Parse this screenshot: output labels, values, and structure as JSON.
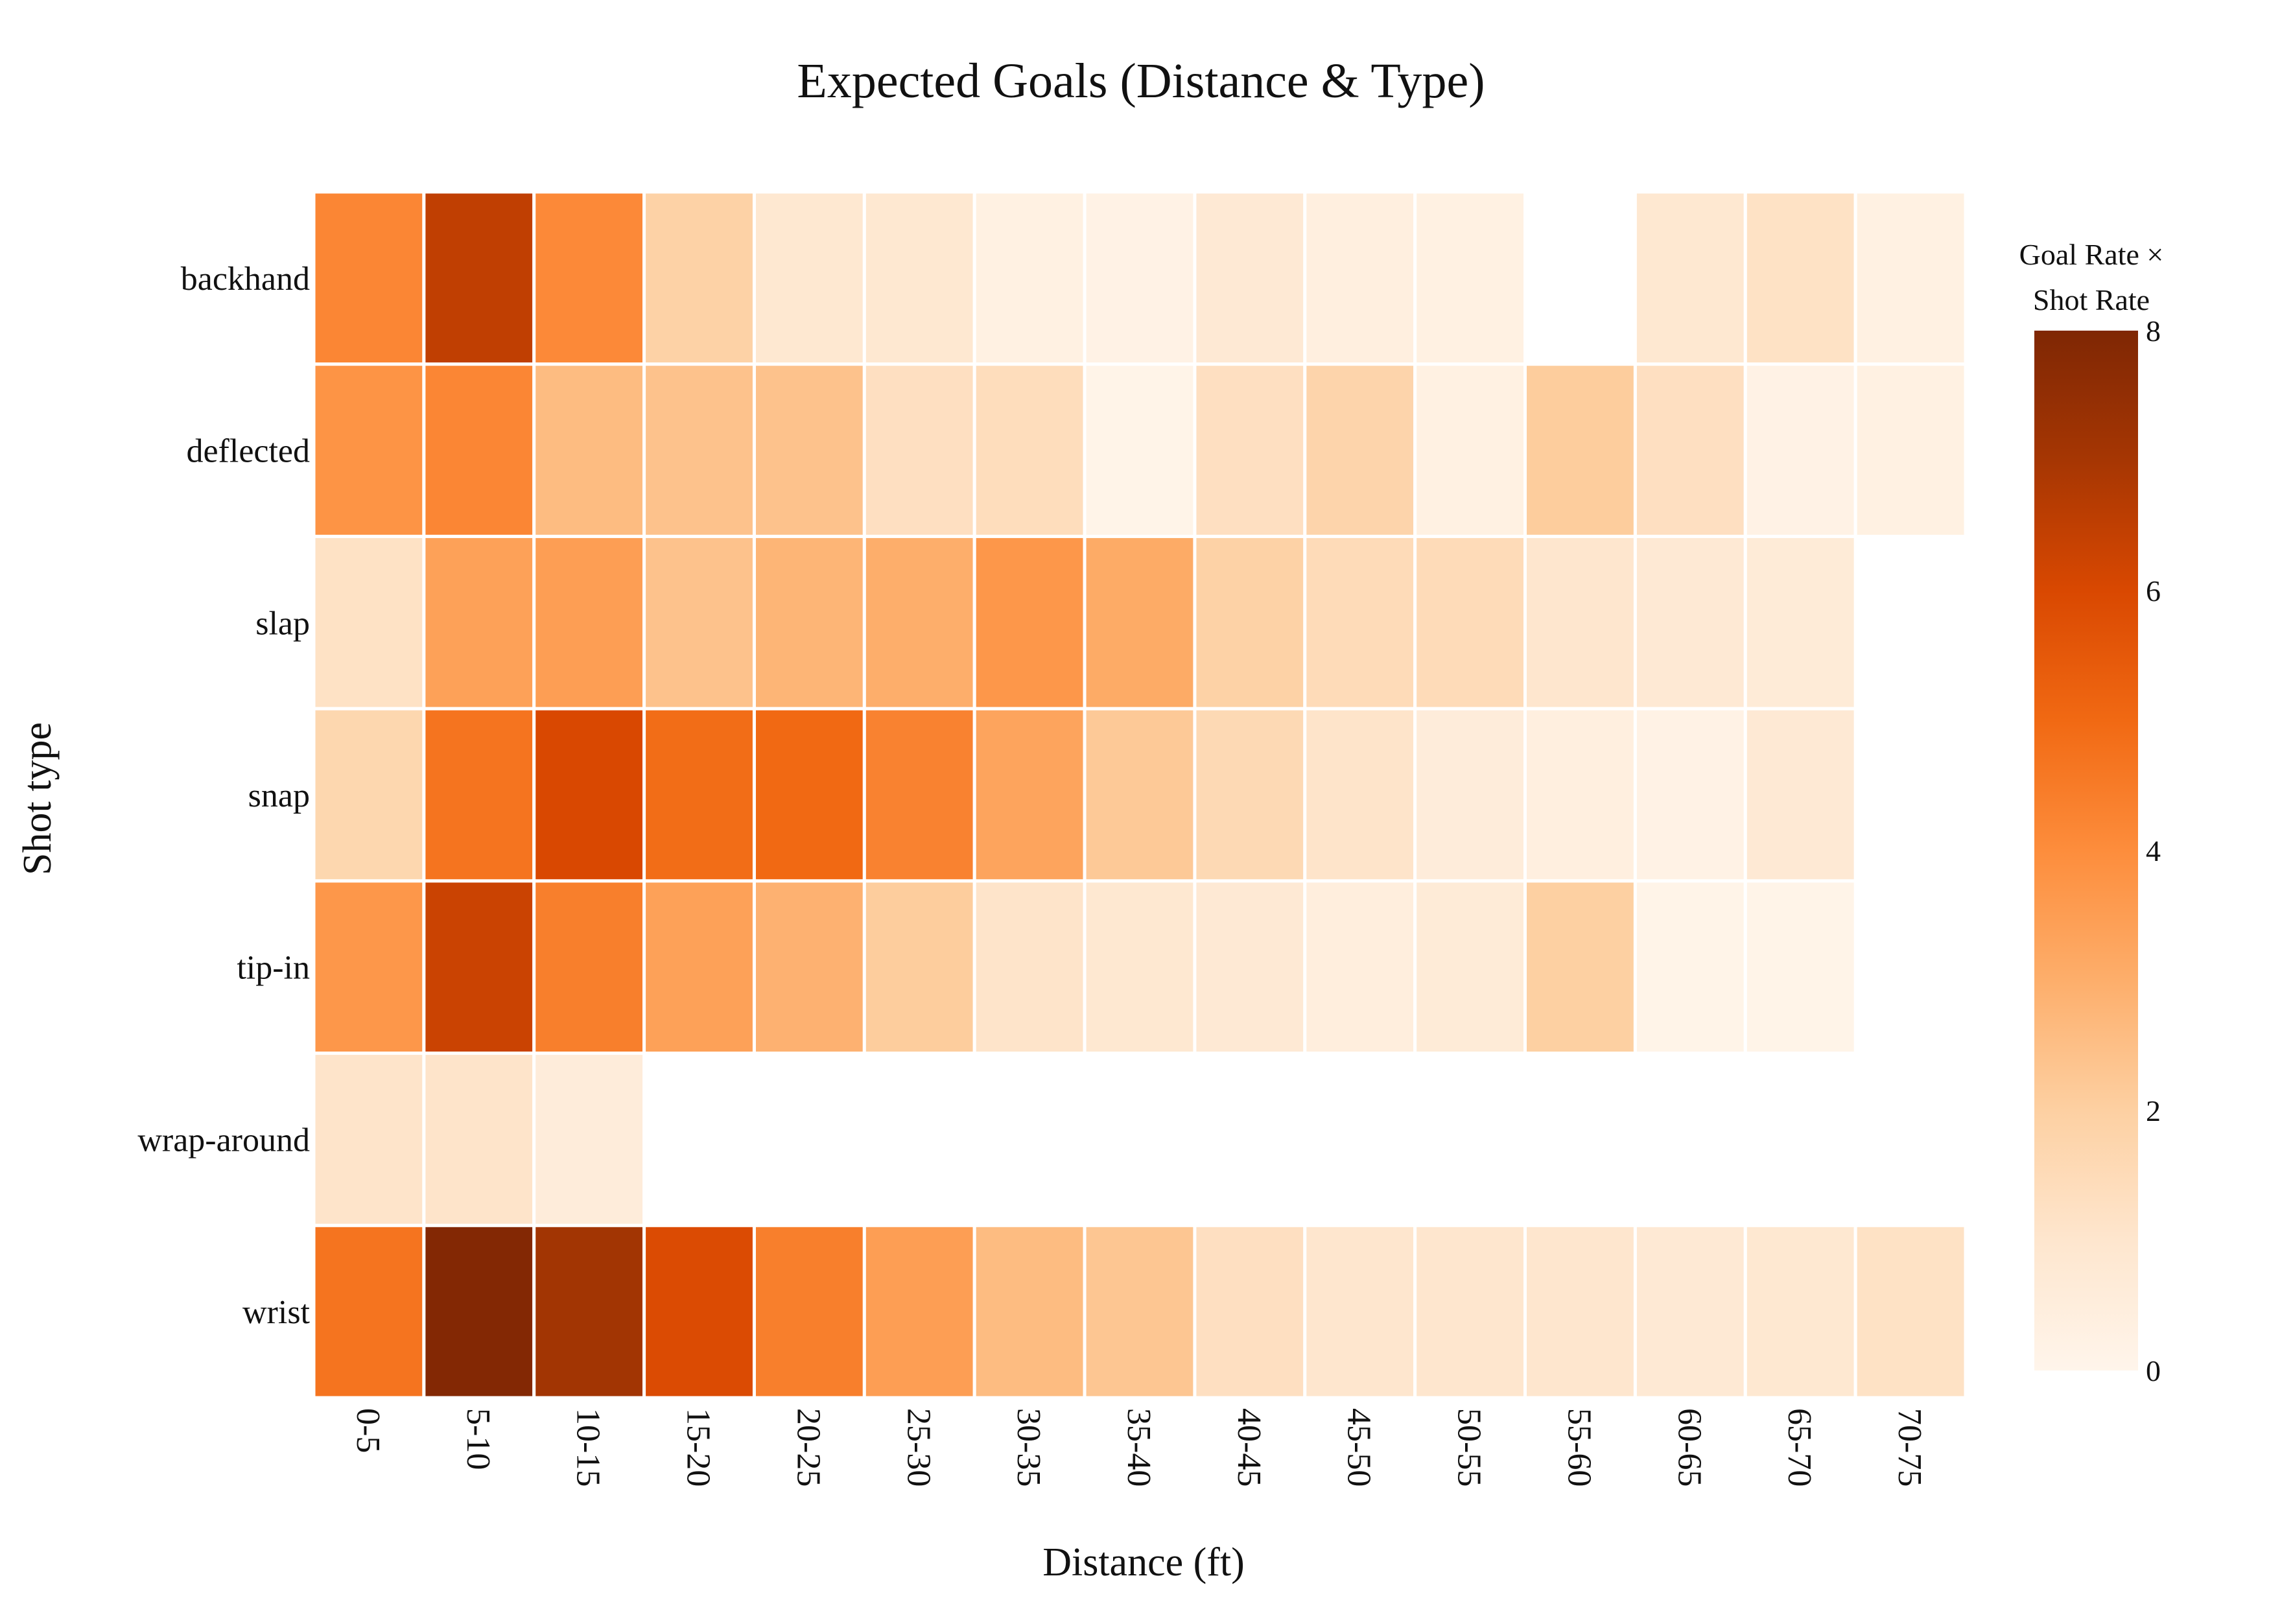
{
  "chart_data": {
    "type": "heatmap",
    "title": "Expected Goals (Distance & Type)",
    "xlabel": "Distance (ft)",
    "ylabel": "Shot type",
    "x": [
      "0-5",
      "5-10",
      "10-15",
      "15-20",
      "20-25",
      "25-30",
      "30-35",
      "35-40",
      "40-45",
      "45-50",
      "50-55",
      "55-60",
      "60-65",
      "65-70",
      "70-75"
    ],
    "y": [
      "backhand",
      "deflected",
      "slap",
      "snap",
      "tip-in",
      "wrap-around",
      "wrist"
    ],
    "z": [
      [
        4.2,
        6.5,
        4.1,
        1.9,
        0.9,
        0.9,
        0.3,
        0.2,
        0.8,
        0.4,
        0.3,
        null,
        0.9,
        1.2,
        0.3
      ],
      [
        3.8,
        4.2,
        2.6,
        2.4,
        2.4,
        1.3,
        1.4,
        0.1,
        1.3,
        1.8,
        0.3,
        2.1,
        1.3,
        0.2,
        0.3
      ],
      [
        1.2,
        3.4,
        3.5,
        2.4,
        2.8,
        3.0,
        3.7,
        3.1,
        1.9,
        1.5,
        1.5,
        1.0,
        0.8,
        0.7,
        null
      ],
      [
        1.7,
        4.7,
        6.0,
        4.9,
        5.0,
        4.3,
        3.3,
        2.2,
        1.6,
        1.1,
        0.6,
        0.4,
        0.2,
        0.8,
        null
      ],
      [
        3.7,
        6.3,
        4.4,
        3.4,
        2.9,
        2.1,
        1.1,
        0.9,
        0.8,
        0.5,
        0.7,
        2.0,
        0.1,
        0.1,
        null
      ],
      [
        1.1,
        1.1,
        0.6,
        null,
        null,
        null,
        null,
        null,
        null,
        null,
        null,
        null,
        null,
        null,
        null
      ],
      [
        4.7,
        7.9,
        7.1,
        5.9,
        4.4,
        3.5,
        2.6,
        2.3,
        1.3,
        1.0,
        1.0,
        1.0,
        0.8,
        0.9,
        1.2
      ]
    ],
    "zmin": 0,
    "zmax": 8,
    "colorscale": "Oranges",
    "colorbar": {
      "title_line1": "Goal Rate ×",
      "title_line2": "Shot Rate",
      "ticks": [
        "0",
        "2",
        "4",
        "6",
        "8"
      ]
    },
    "grid": false
  }
}
